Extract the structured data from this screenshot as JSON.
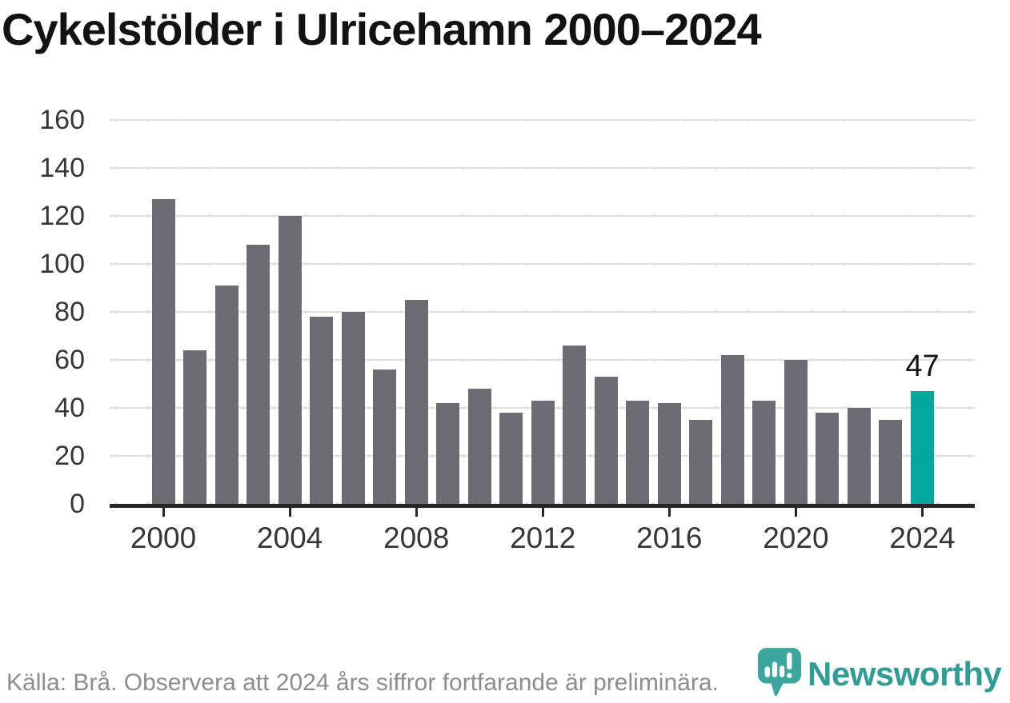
{
  "title": "Cykelstölder i Ulricehamn 2000–2024",
  "chart_data": {
    "type": "bar",
    "title": "Cykelstölder i Ulricehamn 2000–2024",
    "x": [
      2000,
      2001,
      2002,
      2003,
      2004,
      2005,
      2006,
      2007,
      2008,
      2009,
      2010,
      2011,
      2012,
      2013,
      2014,
      2015,
      2016,
      2017,
      2018,
      2019,
      2020,
      2021,
      2022,
      2023,
      2024
    ],
    "values": [
      127,
      64,
      91,
      108,
      120,
      78,
      80,
      56,
      85,
      42,
      48,
      38,
      43,
      66,
      53,
      43,
      42,
      35,
      62,
      43,
      60,
      38,
      40,
      35,
      47
    ],
    "xlabel": "",
    "ylabel": "",
    "ylim": [
      0,
      160
    ],
    "y_ticks": [
      0,
      20,
      40,
      60,
      80,
      100,
      120,
      140,
      160
    ],
    "x_ticks": [
      2000,
      2004,
      2008,
      2012,
      2016,
      2020,
      2024
    ],
    "grid": true,
    "legend": "none",
    "bar_color": "#6d6c72",
    "highlight_color": "#00a79b",
    "highlight_year": 2024,
    "annotation": {
      "text": "47",
      "year": 2024
    }
  },
  "footer": {
    "source_text": "Källa: Brå. Observera att 2024 års siffror fortfarande är preliminära."
  },
  "branding": {
    "wordmark": "Newsworthy",
    "wordmark_color": "#2f9c95",
    "icon_color": "#3aa69d",
    "icon_name": "newsworthy-chart-bubble-icon"
  },
  "colors": {
    "title": "#121212",
    "axis_labels": "#363636",
    "axis_line": "#262626",
    "gridline": "#e1e1e1",
    "footer_text": "#8d8d8d"
  }
}
